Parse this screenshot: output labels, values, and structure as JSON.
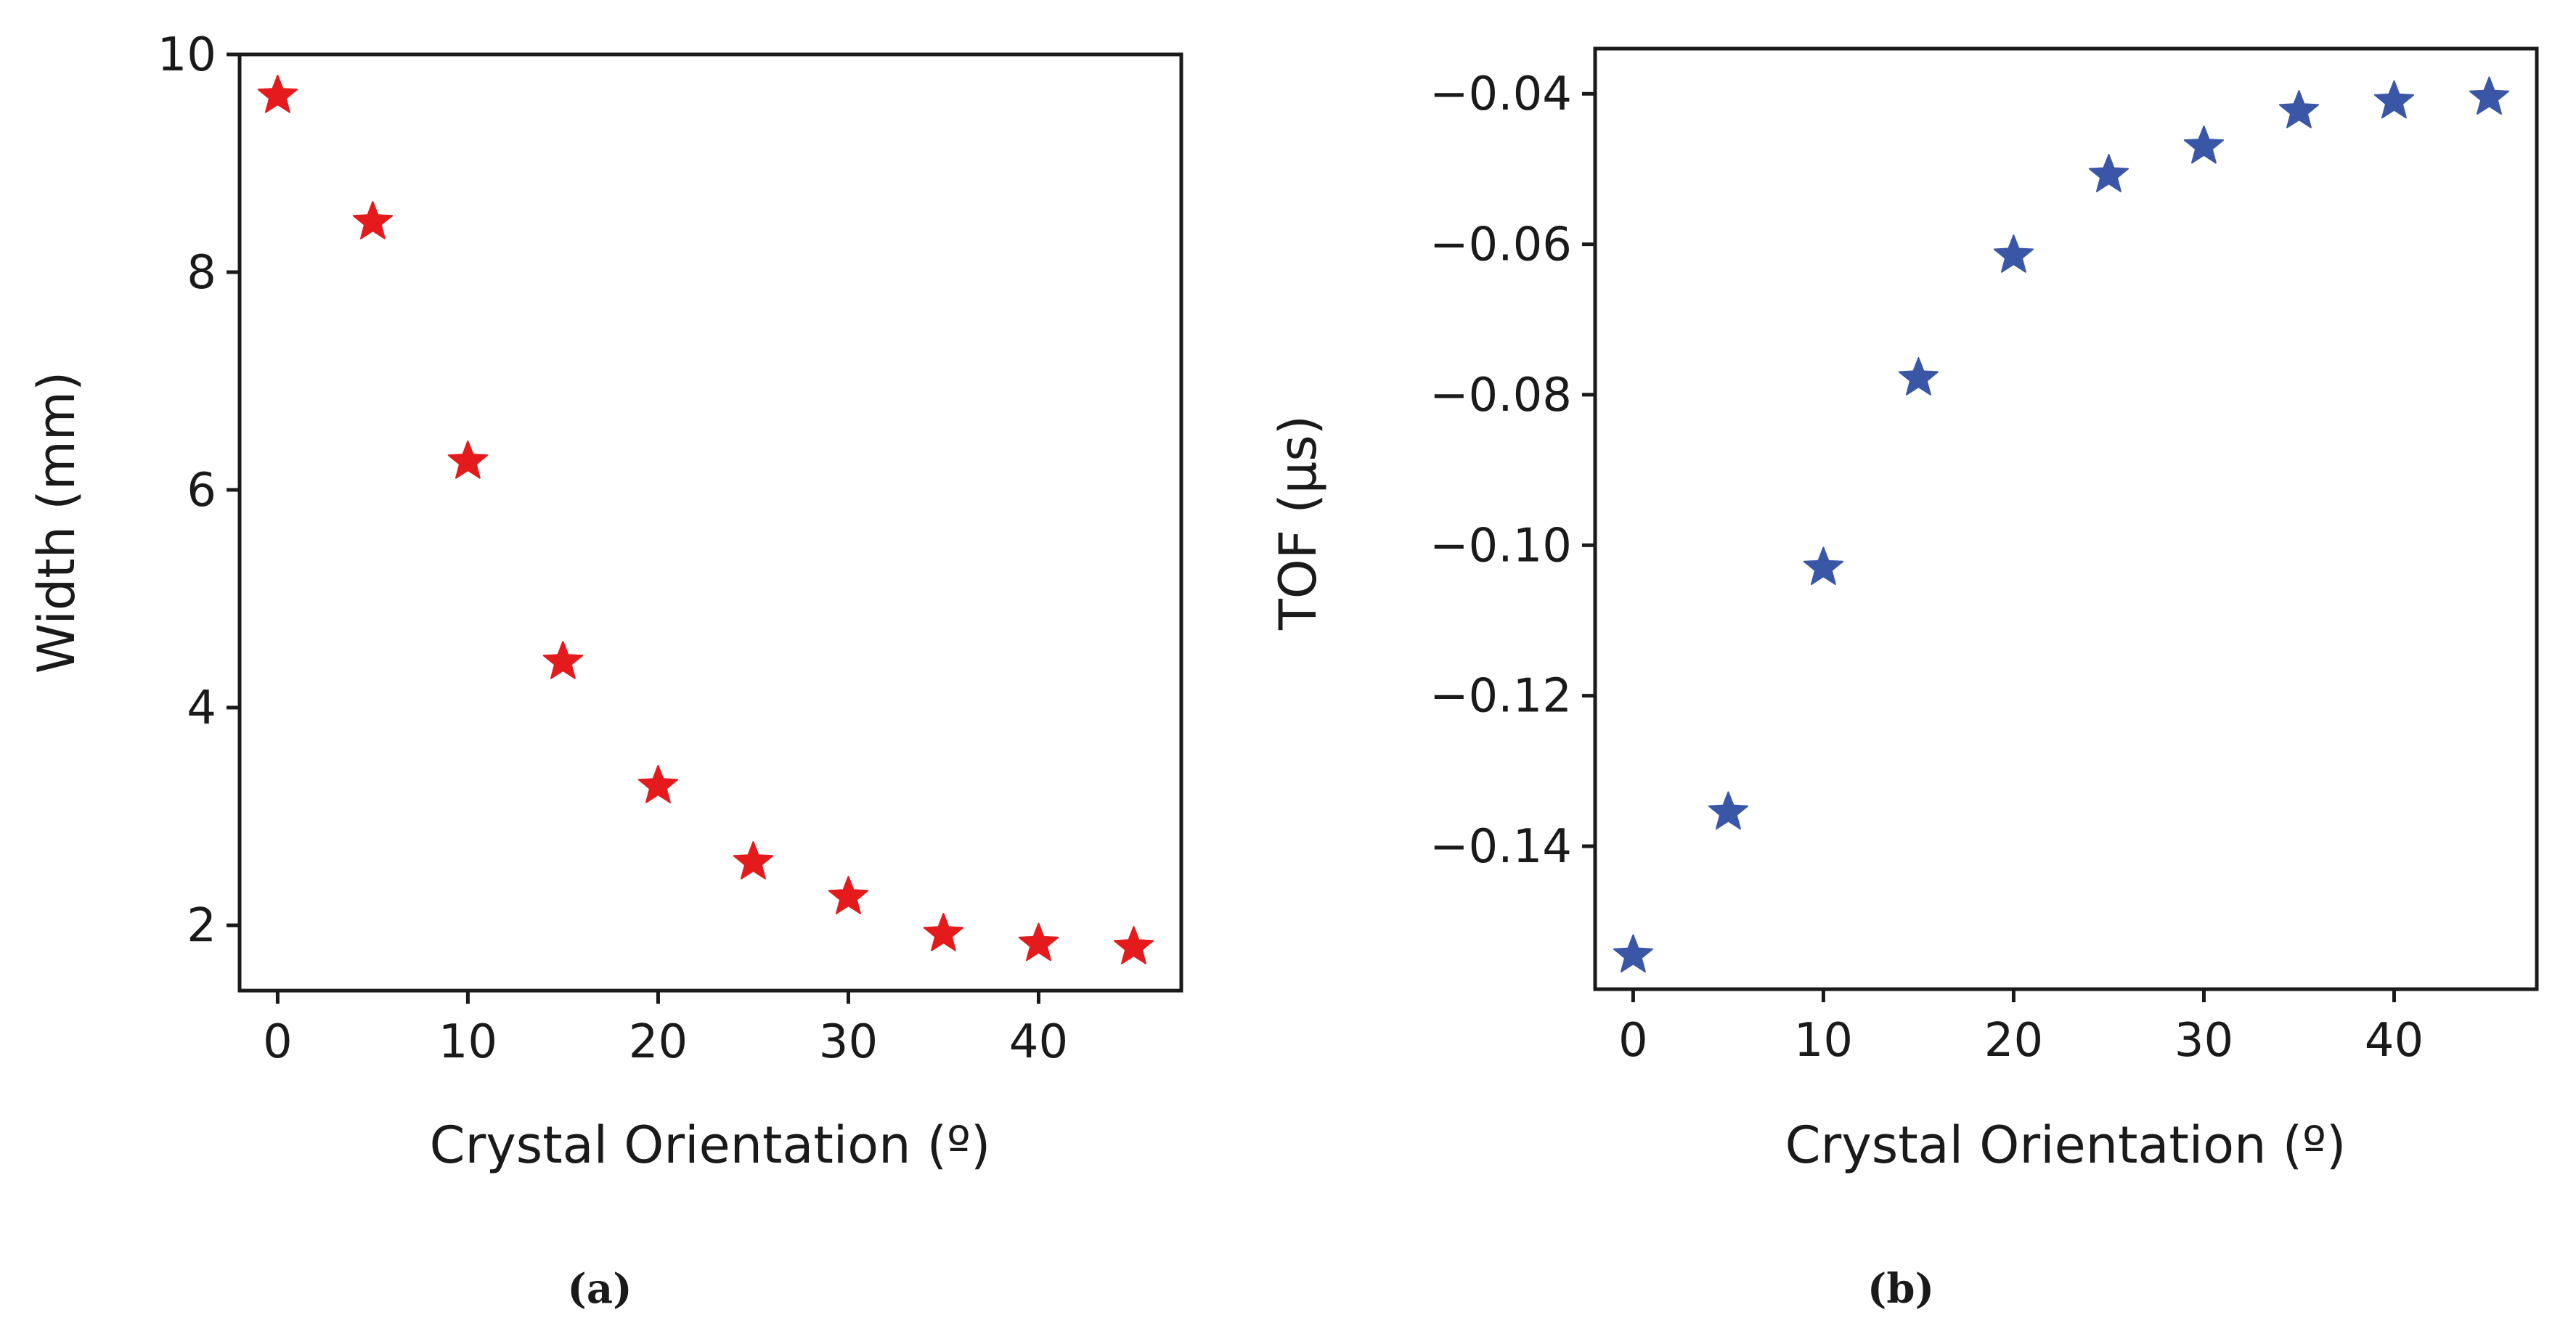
{
  "chart_data": [
    {
      "type": "scatter",
      "caption": "(a)",
      "xlabel": "Crystal Orientation (º)",
      "ylabel": "Width (mm)",
      "xlim": [
        -2,
        47.5
      ],
      "ylim": [
        1.4,
        10
      ],
      "xticks": [
        0,
        10,
        20,
        30,
        40
      ],
      "xtick_labels": [
        "0",
        "10",
        "20",
        "30",
        "40"
      ],
      "yticks": [
        2,
        4,
        6,
        8,
        10
      ],
      "ytick_labels": [
        "2",
        "4",
        "6",
        "8",
        "10"
      ],
      "marker": "star",
      "color": "#e41a1c",
      "x": [
        0,
        5,
        10,
        15,
        20,
        25,
        30,
        35,
        40,
        45
      ],
      "y": [
        9.62,
        8.46,
        6.26,
        4.42,
        3.28,
        2.58,
        2.26,
        1.92,
        1.83,
        1.8
      ]
    },
    {
      "type": "scatter",
      "caption": "(b)",
      "xlabel": "Crystal Orientation (º)",
      "ylabel": "TOF (µs)",
      "xlim": [
        -2,
        47.5
      ],
      "ylim": [
        -0.159,
        -0.034
      ],
      "xticks": [
        0,
        10,
        20,
        30,
        40
      ],
      "xtick_labels": [
        "0",
        "10",
        "20",
        "30",
        "40"
      ],
      "yticks": [
        -0.14,
        -0.12,
        -0.1,
        -0.08,
        -0.06,
        -0.04
      ],
      "ytick_labels": [
        "−0.14",
        "−0.12",
        "−0.10",
        "−0.08",
        "−0.06",
        "−0.04"
      ],
      "marker": "star",
      "color": "#3a57a7",
      "x": [
        0,
        5,
        10,
        15,
        20,
        25,
        30,
        35,
        40,
        45
      ],
      "y": [
        -0.1545,
        -0.1355,
        -0.103,
        -0.0778,
        -0.0615,
        -0.0508,
        -0.047,
        -0.0423,
        -0.041,
        -0.0405
      ]
    }
  ]
}
